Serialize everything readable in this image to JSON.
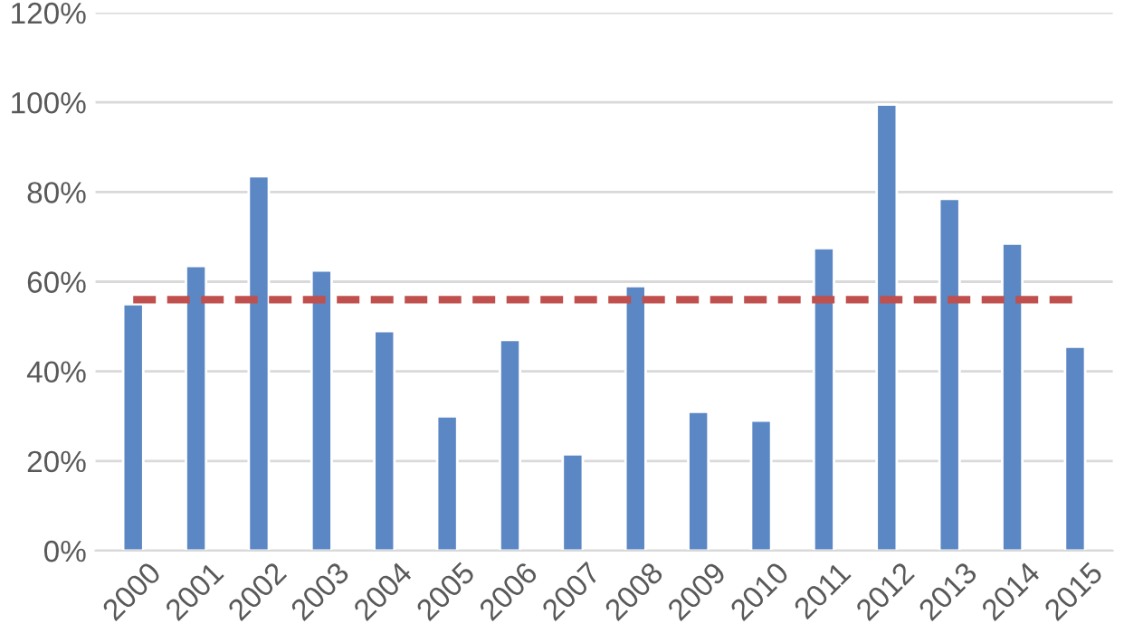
{
  "chart_data": {
    "type": "bar",
    "categories": [
      "2000",
      "2001",
      "2002",
      "2003",
      "2004",
      "2005",
      "2006",
      "2007",
      "2008",
      "2009",
      "2010",
      "2011",
      "2012",
      "2013",
      "2014",
      "2015"
    ],
    "series": [
      {
        "color": "#5b87c5",
        "values": [
          55,
          63.5,
          83.5,
          62.5,
          49,
          30,
          47,
          21.5,
          59,
          31,
          29,
          67.5,
          99.5,
          78.5,
          68.5,
          45.5
        ]
      },
      {
        "type": "line",
        "color": "#c0504d",
        "line_style": "dashed",
        "values": [
          56,
          56,
          56,
          56,
          56,
          56,
          56,
          56,
          56,
          56,
          56,
          56,
          56,
          56,
          56,
          56
        ]
      }
    ],
    "ylim": [
      0,
      120
    ],
    "yticks": [
      {
        "value": 0,
        "label": "0%"
      },
      {
        "value": 20,
        "label": "20%"
      },
      {
        "value": 40,
        "label": "40%"
      },
      {
        "value": 60,
        "label": "60%"
      },
      {
        "value": 80,
        "label": "80%"
      },
      {
        "value": 100,
        "label": "100%"
      },
      {
        "value": 120,
        "label": "120%"
      }
    ],
    "grid": "y",
    "legend": false
  }
}
